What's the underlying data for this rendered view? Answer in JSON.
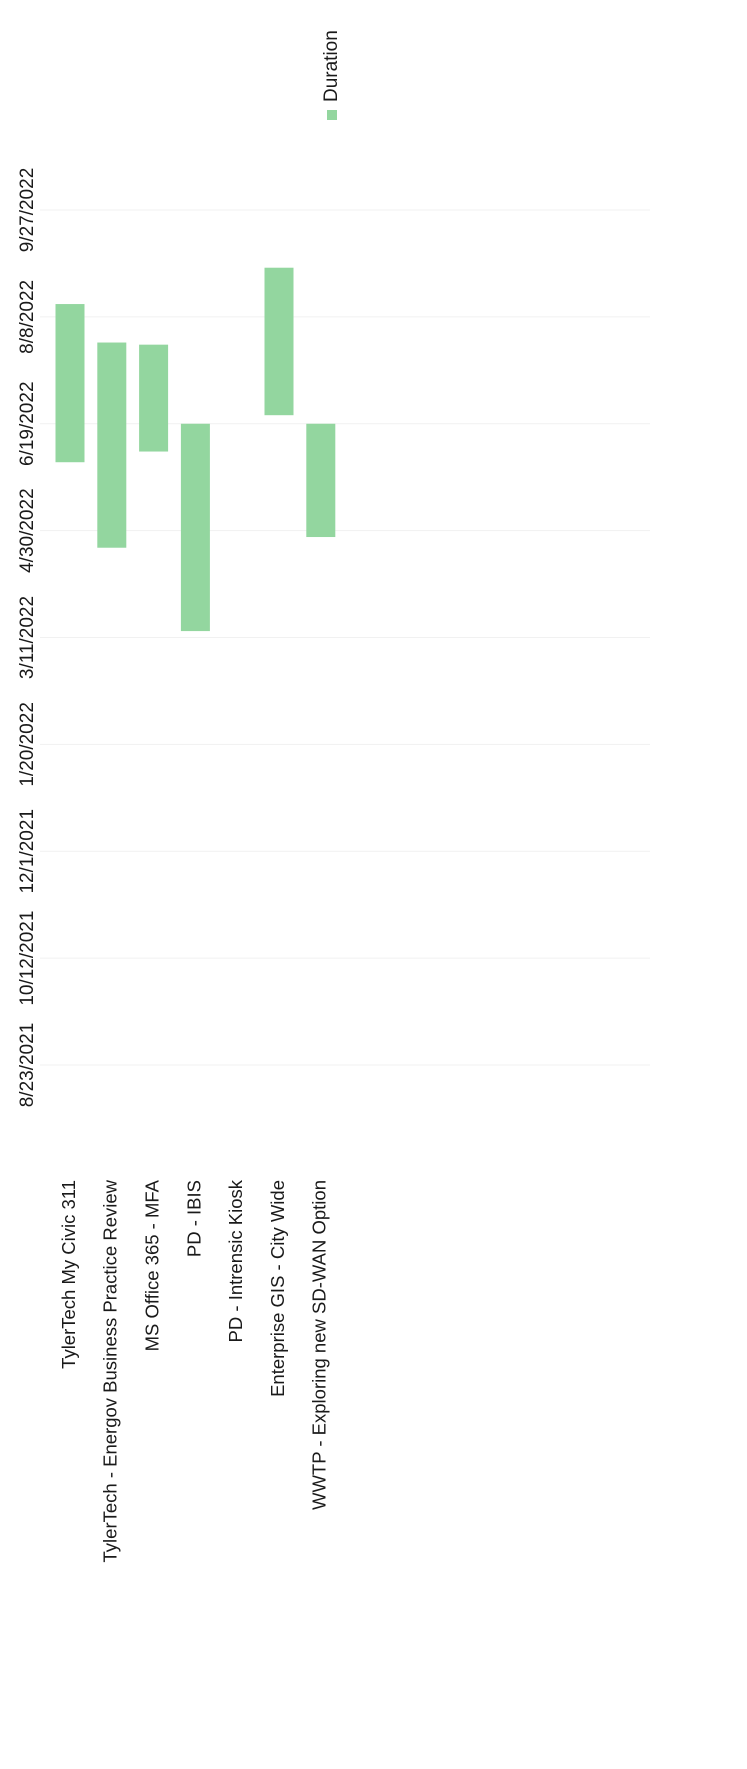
{
  "chart_data": {
    "type": "bar",
    "orientation": "horizontal-gantt",
    "title": "",
    "xlabel": "",
    "ylabel": "",
    "x_ticks": [
      "8/23/2021",
      "10/12/2021",
      "12/1/2021",
      "1/20/2022",
      "3/11/2022",
      "4/30/2022",
      "6/19/2022",
      "8/8/2022",
      "9/27/2022"
    ],
    "xlim": [
      "8/23/2021",
      "9/27/2022"
    ],
    "grid": true,
    "legend": {
      "position": "top-right",
      "entries": [
        {
          "name": "Duration",
          "color": "#93d69f"
        }
      ]
    },
    "categories": [
      "TylerTech My Civic 311",
      "TylerTech - Energov Business Practice Review",
      "MS Office 365 - MFA",
      "PD - IBIS",
      "PD - Intrensic Kiosk",
      "Enterprise GIS - City Wide",
      "WWTP - Exploring new SD-WAN Option"
    ],
    "series": [
      {
        "name": "Duration",
        "color": "#93d69f",
        "bars": [
          {
            "category": "TylerTech My Civic 311",
            "start": "6/1/2022",
            "end": "8/14/2022"
          },
          {
            "category": "TylerTech - Energov Business Practice Review",
            "start": "4/22/2022",
            "end": "7/27/2022"
          },
          {
            "category": "MS Office 365 - MFA",
            "start": "6/6/2022",
            "end": "7/26/2022"
          },
          {
            "category": "PD - IBIS",
            "start": "3/14/2022",
            "end": "6/19/2022"
          },
          {
            "category": "PD - Intrensic Kiosk",
            "start": null,
            "end": null
          },
          {
            "category": "Enterprise GIS - City Wide",
            "start": "6/23/2022",
            "end": "8/31/2022"
          },
          {
            "category": "WWTP - Exploring new SD-WAN Option",
            "start": "4/27/2022",
            "end": "6/19/2022"
          }
        ]
      }
    ]
  }
}
